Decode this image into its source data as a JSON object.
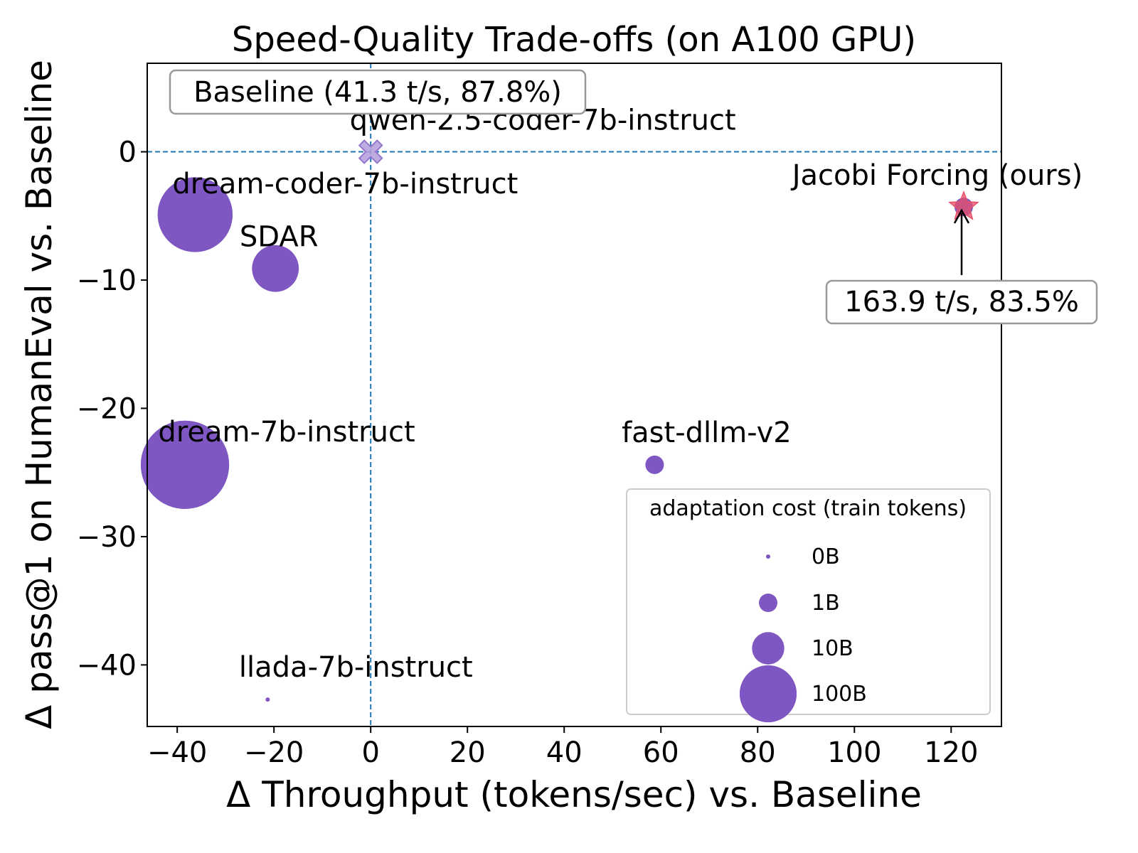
{
  "chart_data": {
    "type": "scatter",
    "title": "Speed-Quality Trade-offs (on A100 GPU)",
    "x_label": "Δ Throughput (tokens/sec) vs. Baseline",
    "y_label": "Δ pass@1 on HumanEval vs. Baseline",
    "xlim": [
      -46.2,
      130.4
    ],
    "ylim": [
      -44.8,
      6.9
    ],
    "xticks": [
      {
        "value": -40,
        "label": "−40"
      },
      {
        "value": -20,
        "label": "−20"
      },
      0,
      20,
      40,
      60,
      80,
      100,
      120
    ],
    "yticks": [
      0,
      {
        "value": -10,
        "label": "−10"
      },
      {
        "value": -20,
        "label": "−20"
      },
      {
        "value": -30,
        "label": "−30"
      },
      {
        "value": -40,
        "label": "−40"
      }
    ],
    "reference_lines": {
      "x": 0,
      "y": 0,
      "color": "#1f77b4"
    },
    "series": [
      {
        "name": "qwen-2.5-coder-7b-instruct",
        "marker": "x",
        "color": "#b39ddb",
        "x": [
          0
        ],
        "values": [
          0
        ]
      },
      {
        "name": "dream-coder-7b-instruct",
        "marker": "o",
        "color": "#7e57c2",
        "x": [
          -36.3
        ],
        "values": [
          -4.9
        ],
        "sizes": [
          300
        ]
      },
      {
        "name": "SDAR",
        "marker": "o",
        "color": "#7e57c2",
        "x": [
          -19.7
        ],
        "values": [
          -9.1
        ],
        "sizes": [
          45
        ]
      },
      {
        "name": "dream-7b-instruct",
        "marker": "o",
        "color": "#7e57c2",
        "x": [
          -38.4
        ],
        "values": [
          -24.4
        ],
        "sizes": [
          580
        ]
      },
      {
        "name": "fast-dllm-v2",
        "marker": "o",
        "color": "#7e57c2",
        "x": [
          58.7
        ],
        "values": [
          -24.4
        ],
        "sizes": [
          1
        ]
      },
      {
        "name": "llada-7b-instruct",
        "marker": "o",
        "color": "#7e57c2",
        "x": [
          -21.3
        ],
        "values": [
          -42.7
        ],
        "sizes": [
          0
        ]
      },
      {
        "name": "Jacobi Forcing (ours)",
        "marker": "star",
        "color": "#e8506a",
        "x": [
          122.6
        ],
        "values": [
          -4.3
        ],
        "sizes": [
          1
        ]
      }
    ],
    "annotations": [
      {
        "text": "Baseline (41.3 t/s, 87.8%)"
      },
      {
        "text": "163.9 t/s, 83.5%"
      }
    ],
    "legend": {
      "title": "adaptation cost (train tokens)",
      "position": "lower right",
      "color": "#7e57c2",
      "sizes": [
        {
          "value": 0,
          "label": "0B"
        },
        {
          "value": 1,
          "label": "1B"
        },
        {
          "value": 10,
          "label": "10B"
        },
        {
          "value": 100,
          "label": "100B"
        }
      ]
    }
  }
}
